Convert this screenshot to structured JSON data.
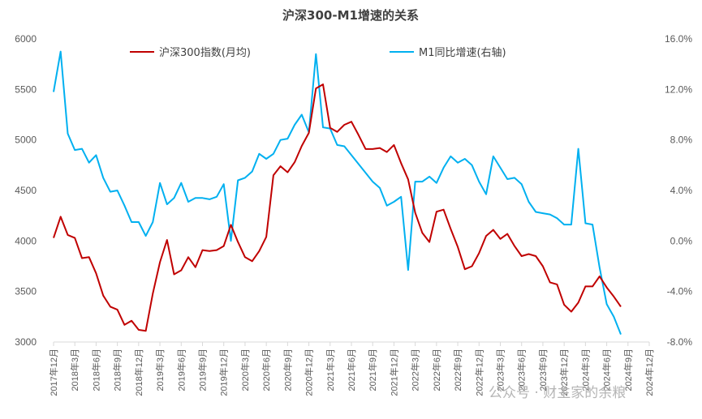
{
  "chart_data": {
    "type": "line",
    "title": "沪深300-M1增速的关系",
    "colors": {
      "hs300": "#c00000",
      "m1": "#00b0f0",
      "axis": "#d9d9d9",
      "text": "#595959"
    },
    "legend": {
      "placement": "top",
      "entries": [
        "沪深300指数(月均)",
        "M1同比增速(右轴)"
      ]
    },
    "grid": false,
    "x_tick_labels": [
      "2017年12月",
      "2018年3月",
      "2018年6月",
      "2018年9月",
      "2018年12月",
      "2019年3月",
      "2019年6月",
      "2019年9月",
      "2019年12月",
      "2020年3月",
      "2020年6月",
      "2020年9月",
      "2020年12月",
      "2021年3月",
      "2021年6月",
      "2021年9月",
      "2021年12月",
      "2022年3月",
      "2022年6月",
      "2022年9月",
      "2022年12月",
      "2023年3月",
      "2023年6月",
      "2023年9月",
      "2023年12月",
      "2024年3月",
      "2024年6月",
      "2024年9月",
      "2024年12月"
    ],
    "x_range": [
      "2017-12",
      "2024-12"
    ],
    "y_left": {
      "ticks": [
        "3000",
        "3500",
        "4000",
        "4500",
        "5000",
        "5500",
        "6000"
      ],
      "range": [
        3000,
        6000
      ]
    },
    "y_right": {
      "ticks": [
        "-8.0%",
        "-4.0%",
        "0.0%",
        "4.0%",
        "8.0%",
        "12.0%",
        "16.0%"
      ],
      "range": [
        -8,
        16
      ],
      "unit": "%"
    },
    "series": [
      {
        "name": "沪深300指数(月均)",
        "axis": "left",
        "start": "2017-12",
        "values": [
          4030,
          4240,
          4060,
          4030,
          3830,
          3840,
          3680,
          3460,
          3350,
          3320,
          3170,
          3210,
          3120,
          3110,
          3480,
          3790,
          4010,
          3670,
          3710,
          3840,
          3740,
          3910,
          3900,
          3910,
          3950,
          4160,
          3990,
          3840,
          3800,
          3900,
          4040,
          4650,
          4740,
          4680,
          4780,
          4940,
          5070,
          5510,
          5550,
          5120,
          5080,
          5150,
          5180,
          5050,
          4910,
          4910,
          4920,
          4880,
          4950,
          4770,
          4610,
          4280,
          4080,
          3990,
          4290,
          4310,
          4120,
          3940,
          3720,
          3750,
          3880,
          4050,
          4110,
          4020,
          4070,
          3950,
          3850,
          3870,
          3850,
          3750,
          3590,
          3570,
          3370,
          3300,
          3390,
          3550,
          3550,
          3650,
          3540,
          3450,
          3350
        ]
      },
      {
        "name": "M1同比增速(右轴)",
        "axis": "right",
        "start": "2017-12",
        "values": [
          11.8,
          15.0,
          8.5,
          7.2,
          7.3,
          6.2,
          6.8,
          5.0,
          3.9,
          4.0,
          2.8,
          1.5,
          1.5,
          0.4,
          1.5,
          4.6,
          2.9,
          3.4,
          4.6,
          3.1,
          3.4,
          3.4,
          3.3,
          3.5,
          4.5,
          0.0,
          4.8,
          5.0,
          5.5,
          6.9,
          6.5,
          6.9,
          8.0,
          8.1,
          9.2,
          10.0,
          8.6,
          14.8,
          9.0,
          8.9,
          7.6,
          7.5,
          6.8,
          6.1,
          5.4,
          4.7,
          4.2,
          2.8,
          3.1,
          3.5,
          -2.3,
          4.7,
          4.7,
          5.1,
          4.6,
          5.8,
          6.7,
          6.2,
          6.5,
          6.0,
          4.7,
          3.7,
          6.7,
          5.8,
          4.9,
          5.0,
          4.5,
          3.1,
          2.3,
          2.2,
          2.1,
          1.8,
          1.3,
          1.3,
          7.3,
          1.4,
          1.3,
          -2.1,
          -5.0,
          -6.0,
          -7.4
        ]
      }
    ]
  },
  "watermark": "公众号 · 财主家的余粮"
}
